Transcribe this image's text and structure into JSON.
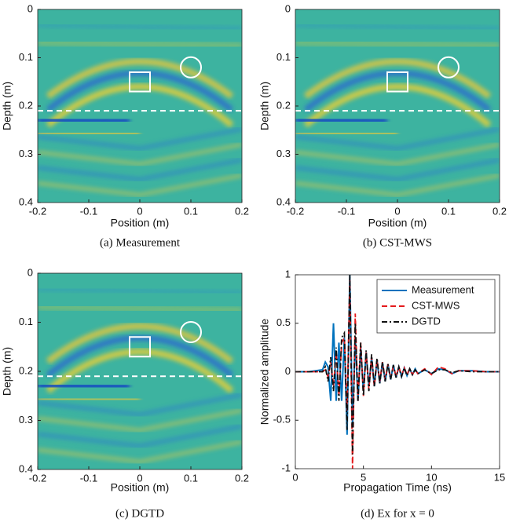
{
  "chart_data": [
    {
      "type": "heatmap",
      "caption": "(a)  Measurement",
      "xlabel": "Position (m)",
      "ylabel": "Depth (m)",
      "xlim": [
        -0.2,
        0.2
      ],
      "xticks": [
        -0.2,
        -0.1,
        0,
        0.1,
        0.2
      ],
      "ylim": [
        0,
        0.4
      ],
      "yticks": [
        0,
        0.1,
        0.2,
        0.3,
        0.4
      ],
      "yreverse": true,
      "box": {
        "x": [
          -0.02,
          0.02
        ],
        "y": [
          0.13,
          0.17
        ]
      },
      "circle": {
        "x": 0.1,
        "y": 0.12,
        "r": 0.02
      },
      "hline": 0.21
    },
    {
      "type": "heatmap",
      "caption": "(b)  CST-MWS",
      "xlabel": "Position (m)",
      "ylabel": "Depth (m)",
      "xlim": [
        -0.2,
        0.2
      ],
      "xticks": [
        -0.2,
        -0.1,
        0,
        0.1,
        0.2
      ],
      "ylim": [
        0,
        0.4
      ],
      "yticks": [
        0,
        0.1,
        0.2,
        0.3,
        0.4
      ],
      "yreverse": true,
      "box": {
        "x": [
          -0.02,
          0.02
        ],
        "y": [
          0.13,
          0.17
        ]
      },
      "circle": {
        "x": 0.1,
        "y": 0.12,
        "r": 0.02
      },
      "hline": 0.21
    },
    {
      "type": "heatmap",
      "caption": "(c)  DGTD",
      "xlabel": "Position (m)",
      "ylabel": "Depth (m)",
      "xlim": [
        -0.2,
        0.2
      ],
      "xticks": [
        -0.2,
        -0.1,
        0,
        0.1,
        0.2
      ],
      "ylim": [
        0,
        0.4
      ],
      "yticks": [
        0,
        0.1,
        0.2,
        0.3,
        0.4
      ],
      "yreverse": true,
      "box": {
        "x": [
          -0.02,
          0.02
        ],
        "y": [
          0.13,
          0.17
        ]
      },
      "circle": {
        "x": 0.1,
        "y": 0.12,
        "r": 0.02
      },
      "hline": 0.21
    },
    {
      "type": "line",
      "caption": "(d)  Ex  for  x = 0",
      "xlabel": "Propagation Time  (ns)",
      "ylabel": "Normalized amplitude",
      "xlim": [
        0,
        15
      ],
      "xticks": [
        0,
        5,
        10,
        15
      ],
      "ylim": [
        -1,
        1
      ],
      "yticks": [
        -1,
        -0.5,
        0,
        0.5,
        1
      ],
      "legend": "upper right",
      "x": [
        0,
        1,
        1.5,
        2,
        2.2,
        2.4,
        2.6,
        2.8,
        3,
        3.2,
        3.4,
        3.6,
        3.8,
        4,
        4.2,
        4.4,
        4.6,
        4.8,
        5,
        5.2,
        5.4,
        5.6,
        5.8,
        6,
        6.2,
        6.4,
        6.6,
        6.8,
        7,
        7.2,
        7.4,
        7.6,
        7.8,
        8,
        8.2,
        8.4,
        8.6,
        8.8,
        9,
        9.5,
        10,
        10.5,
        11,
        11.5,
        12,
        13,
        14,
        15
      ],
      "series": [
        {
          "name": "Measurement",
          "color": "#0072bd",
          "dash": "solid",
          "values": [
            0,
            0,
            0.01,
            0.02,
            0.1,
            0.05,
            -0.3,
            0.5,
            -0.3,
            0.3,
            -0.3,
            0.35,
            -0.65,
            1.0,
            -0.55,
            0.35,
            -0.3,
            0.25,
            -0.2,
            0.2,
            -0.15,
            0.15,
            -0.15,
            0.12,
            -0.12,
            0.1,
            -0.1,
            0.08,
            -0.08,
            0.07,
            -0.06,
            0.05,
            -0.05,
            0.04,
            -0.04,
            0.03,
            -0.03,
            0.03,
            -0.02,
            0.02,
            -0.02,
            0.03,
            0.02,
            -0.02,
            0.01,
            0.01,
            0,
            0
          ]
        },
        {
          "name": "CST-MWS",
          "color": "#e41a1c",
          "dash": "dashed",
          "values": [
            0,
            0,
            0,
            0,
            0.02,
            -0.05,
            0.1,
            -0.15,
            0.2,
            -0.25,
            0.3,
            0.35,
            -0.4,
            0.95,
            -1.0,
            0.6,
            -0.3,
            0.3,
            -0.25,
            0.2,
            -0.18,
            0.15,
            -0.15,
            0.12,
            -0.1,
            0.1,
            -0.08,
            0.08,
            -0.07,
            0.06,
            -0.05,
            0.05,
            -0.04,
            0.04,
            -0.03,
            0.03,
            -0.03,
            0.02,
            -0.02,
            0.03,
            -0.03,
            0.05,
            0.03,
            -0.02,
            0.01,
            0.01,
            0,
            0
          ]
        },
        {
          "name": "DGTD",
          "color": "#111111",
          "dash": "dashdot",
          "values": [
            0,
            0,
            0,
            0,
            0.05,
            -0.1,
            0.15,
            -0.2,
            0.25,
            -0.3,
            0.35,
            0.4,
            -0.6,
            1.0,
            -0.85,
            0.5,
            -0.3,
            0.3,
            -0.25,
            0.22,
            -0.2,
            0.18,
            -0.15,
            0.14,
            -0.12,
            0.1,
            -0.1,
            0.08,
            -0.08,
            0.07,
            -0.06,
            0.05,
            -0.05,
            0.04,
            -0.04,
            0.03,
            -0.03,
            0.02,
            -0.02,
            0.02,
            -0.02,
            0.02,
            0.02,
            -0.01,
            0.01,
            0,
            0,
            0
          ]
        }
      ]
    }
  ]
}
